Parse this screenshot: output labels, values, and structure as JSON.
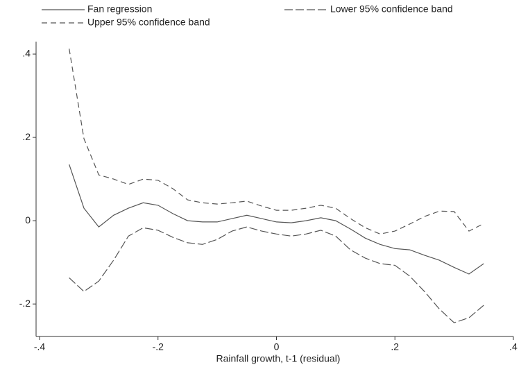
{
  "chart_data": {
    "type": "line",
    "xlabel": "Rainfall growth, t-1 (residual)",
    "x": [
      -0.35,
      -0.325,
      -0.3,
      -0.275,
      -0.25,
      -0.225,
      -0.2,
      -0.175,
      -0.15,
      -0.125,
      -0.1,
      -0.075,
      -0.05,
      -0.025,
      0,
      0.025,
      0.05,
      0.075,
      0.1,
      0.125,
      0.15,
      0.175,
      0.2,
      0.225,
      0.25,
      0.275,
      0.3,
      0.325,
      0.35
    ],
    "series": [
      {
        "name": "Fan regression",
        "color": "#555555",
        "style": "solid",
        "values": [
          0.135,
          0.03,
          -0.015,
          0.013,
          0.03,
          0.043,
          0.037,
          0.017,
          0,
          -0.003,
          -0.003,
          0.005,
          0.013,
          0.005,
          -0.003,
          -0.005,
          0,
          0.007,
          0,
          -0.02,
          -0.042,
          -0.057,
          -0.067,
          -0.07,
          -0.083,
          -0.095,
          -0.112,
          -0.128,
          -0.103
        ]
      },
      {
        "name": "Lower 95% confidence band",
        "color": "#555555",
        "style": "longdash",
        "values": [
          -0.137,
          -0.17,
          -0.145,
          -0.095,
          -0.037,
          -0.017,
          -0.023,
          -0.04,
          -0.053,
          -0.057,
          -0.045,
          -0.025,
          -0.015,
          -0.025,
          -0.032,
          -0.037,
          -0.032,
          -0.023,
          -0.037,
          -0.07,
          -0.09,
          -0.103,
          -0.107,
          -0.133,
          -0.17,
          -0.212,
          -0.245,
          -0.233,
          -0.203
        ]
      },
      {
        "name": "Upper 95% confidence band",
        "color": "#555555",
        "style": "dash",
        "values": [
          0.413,
          0.197,
          0.11,
          0.1,
          0.087,
          0.1,
          0.097,
          0.077,
          0.05,
          0.043,
          0.04,
          0.043,
          0.047,
          0.035,
          0.025,
          0.025,
          0.03,
          0.037,
          0.03,
          0.005,
          -0.017,
          -0.032,
          -0.025,
          -0.008,
          0.01,
          0.023,
          0.022,
          -0.025,
          -0.007
        ]
      }
    ],
    "xlim": [
      -0.4,
      0.4
    ],
    "xticks": [
      {
        "value": -0.4,
        "label": "-.4"
      },
      {
        "value": -0.2,
        "label": "-.2"
      },
      0,
      {
        "value": 0.2,
        "label": ".2"
      },
      {
        "value": 0.4,
        "label": ".4"
      }
    ],
    "ylim": [
      -0.278,
      0.43
    ],
    "yticks": [
      {
        "value": -0.2,
        "label": "-.2"
      },
      0,
      {
        "value": 0.2,
        "label": ".2"
      },
      {
        "value": 0.4,
        "label": ".4"
      }
    ],
    "grid": false,
    "legend": "top"
  }
}
